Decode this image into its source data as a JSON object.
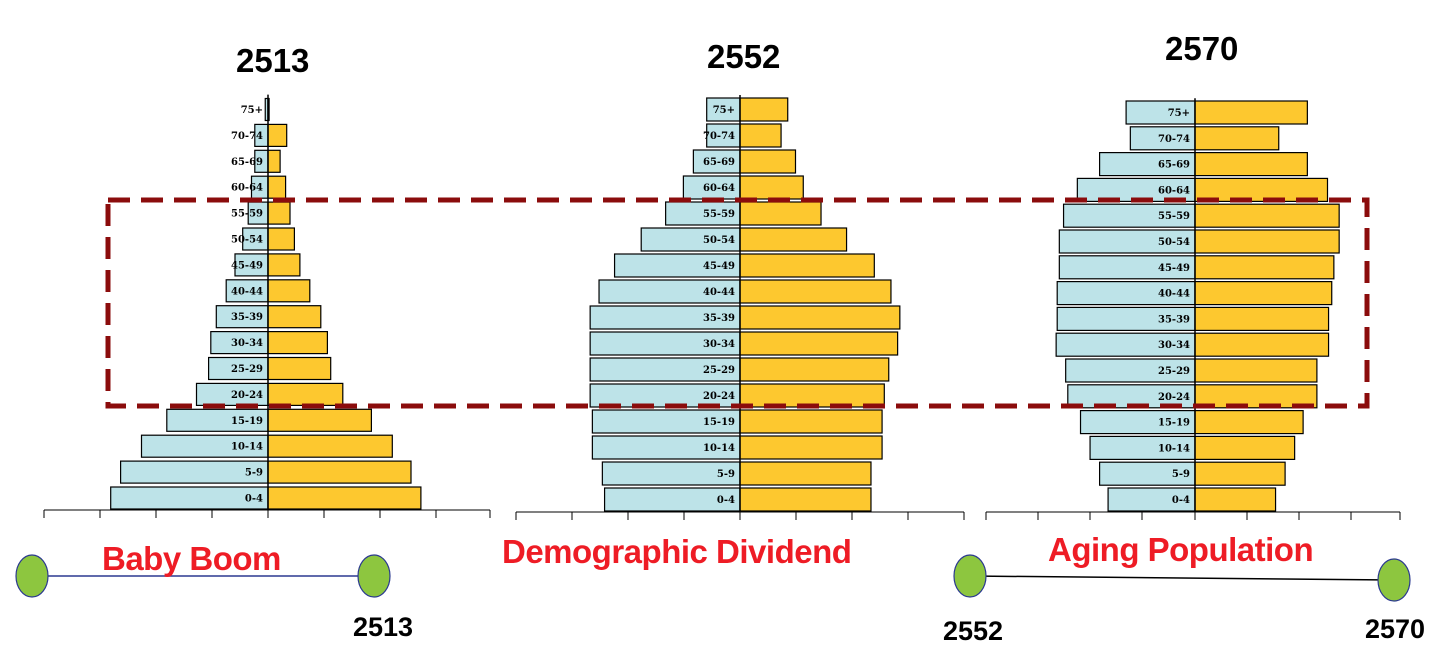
{
  "chart_data": {
    "type": "bar",
    "subtype": "population-pyramid",
    "age_groups": [
      "0-4",
      "5-9",
      "10-14",
      "15-19",
      "20-24",
      "25-29",
      "30-34",
      "35-39",
      "40-44",
      "45-49",
      "50-54",
      "55-59",
      "60-64",
      "65-69",
      "70-74",
      "75+"
    ],
    "colors": {
      "left": "#bde3e8",
      "right": "#fdc82f",
      "highlight": "#8b0c0c",
      "phase_text": "#ee1c25",
      "node": "#8dc63f",
      "outline": "#000000"
    },
    "pyramids": [
      {
        "title": "2513",
        "left": [
          14.3,
          13.4,
          11.5,
          9.2,
          6.5,
          5.4,
          5.2,
          4.7,
          3.8,
          3.0,
          2.3,
          1.8,
          1.5,
          1.2,
          1.2,
          0.25
        ],
        "right": [
          13.9,
          13.0,
          11.3,
          9.4,
          6.8,
          5.7,
          5.4,
          4.8,
          3.8,
          2.9,
          2.4,
          2.0,
          1.6,
          1.1,
          1.7,
          0.1
        ]
      },
      {
        "title": "2552",
        "left": [
          12.2,
          12.4,
          13.3,
          13.3,
          13.5,
          13.5,
          13.5,
          13.5,
          12.7,
          11.3,
          8.9,
          6.7,
          5.1,
          4.2,
          3.0,
          3.0
        ],
        "right": [
          11.8,
          11.8,
          12.8,
          12.8,
          13.0,
          13.4,
          14.2,
          14.4,
          13.6,
          12.1,
          9.6,
          7.3,
          5.7,
          5.0,
          3.7,
          4.3
        ]
      },
      {
        "title": "2570",
        "left": [
          8.2,
          9.0,
          9.9,
          10.8,
          12.0,
          12.2,
          13.1,
          13.0,
          13.0,
          12.8,
          12.8,
          12.4,
          11.1,
          9.0,
          6.1,
          6.5
        ],
        "right": [
          7.6,
          8.5,
          9.4,
          10.2,
          11.5,
          11.5,
          12.6,
          12.6,
          12.9,
          13.1,
          13.6,
          13.6,
          12.5,
          10.6,
          7.9,
          10.6
        ]
      }
    ]
  },
  "phases": {
    "baby_boom": "Baby Boom",
    "demographic_dividend": "Demographic Dividend",
    "aging_population": "Aging Population"
  },
  "timeline_years": [
    "2513",
    "2552",
    "2570"
  ]
}
